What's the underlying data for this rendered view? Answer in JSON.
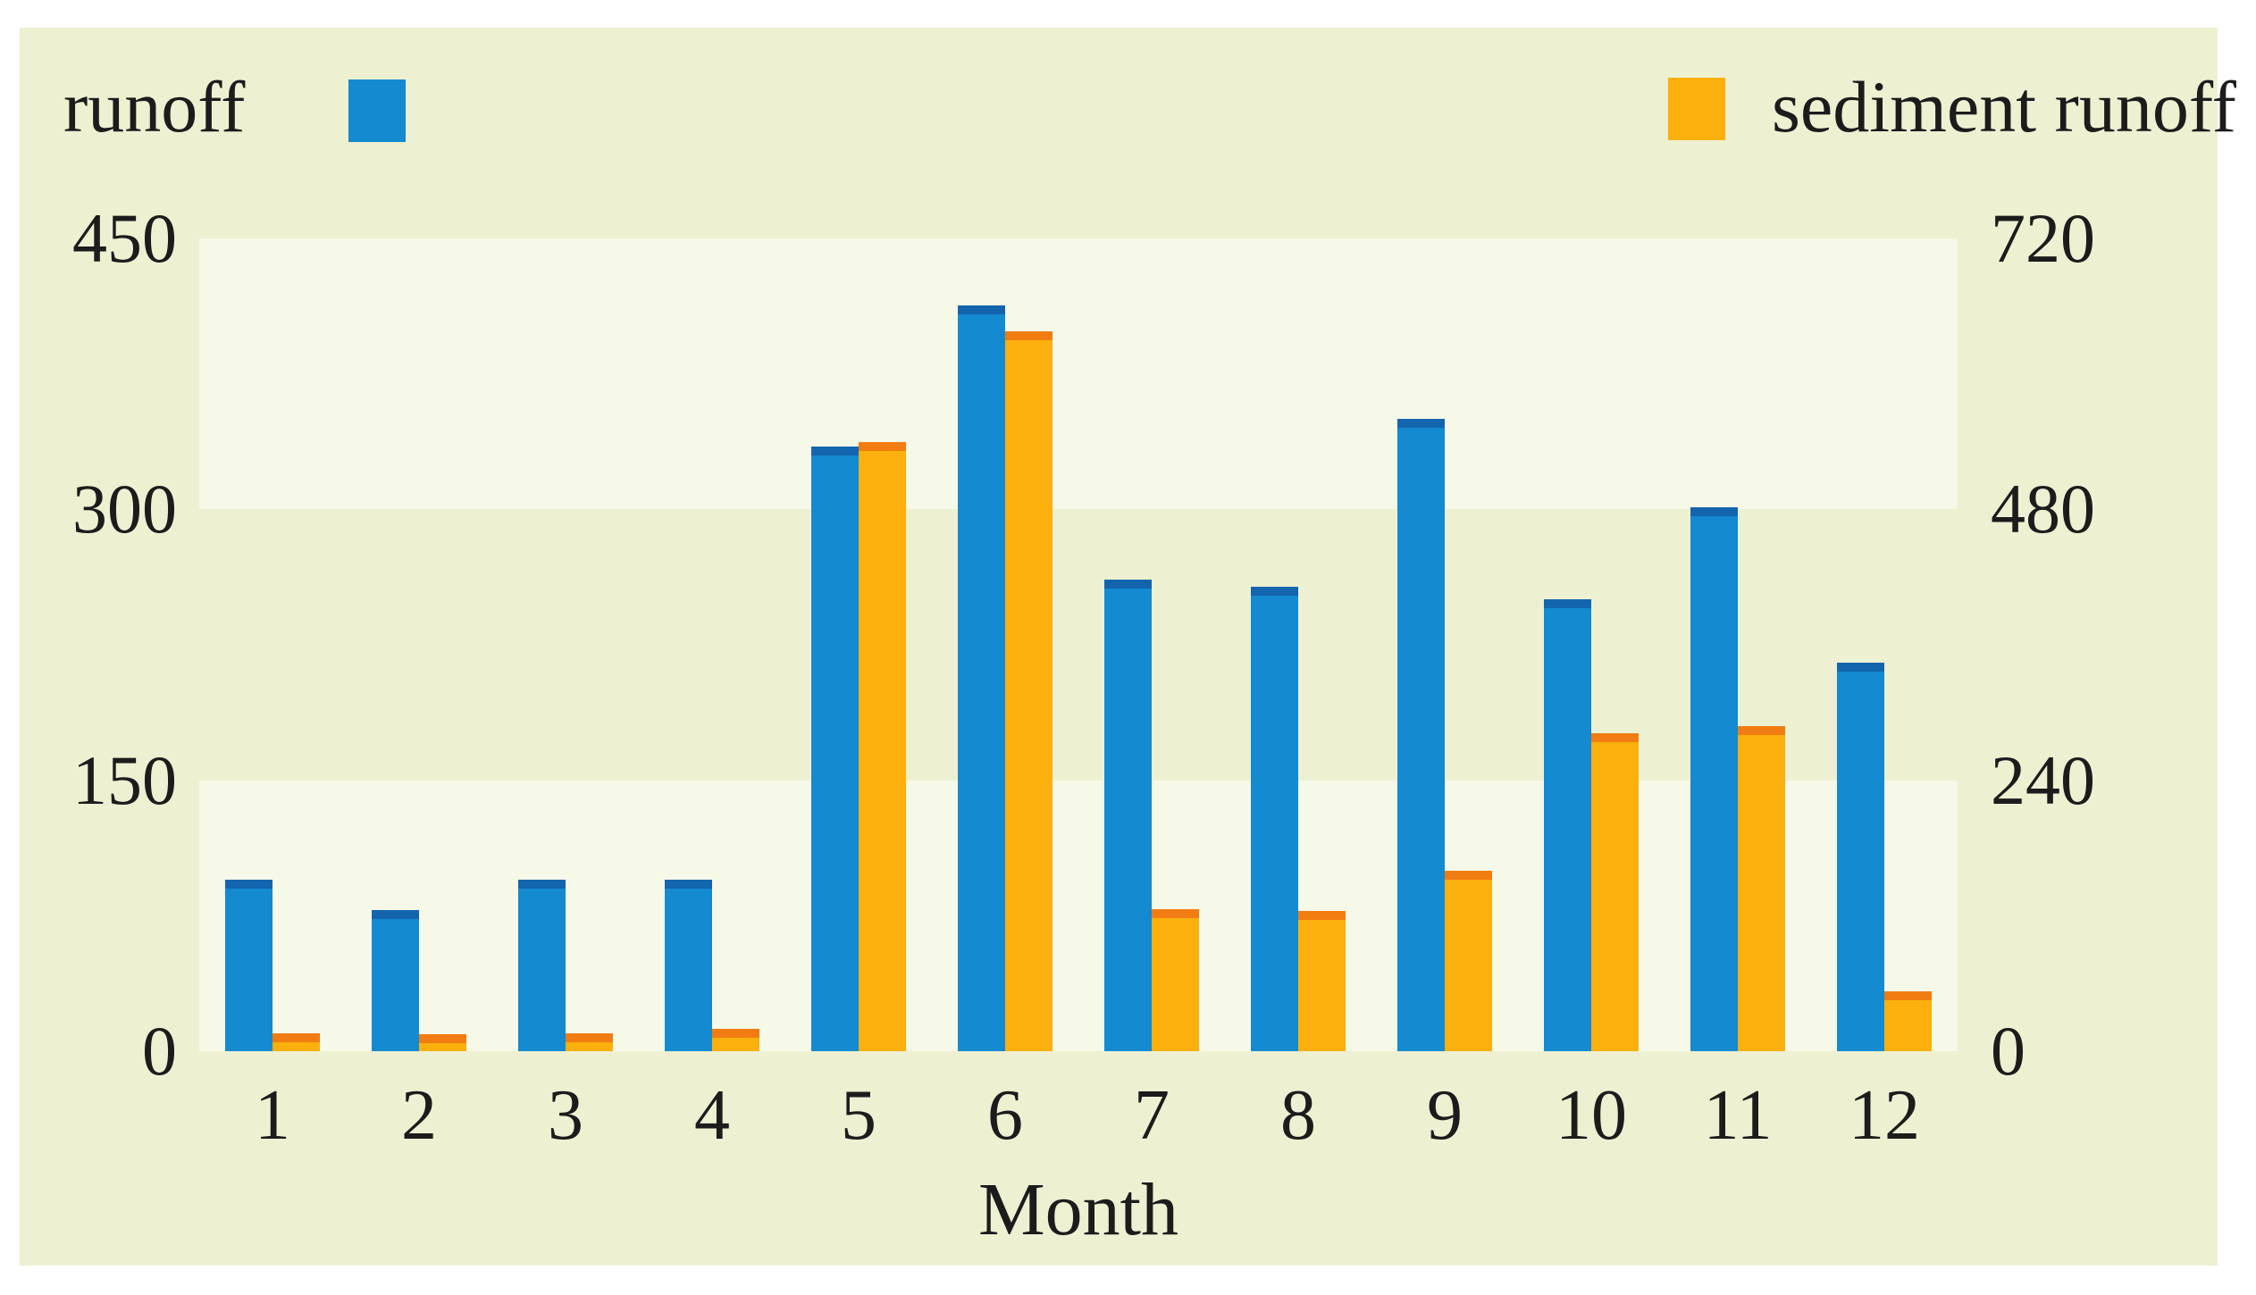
{
  "chart_data": {
    "type": "bar",
    "xlabel": "Month",
    "categories": [
      "1",
      "2",
      "3",
      "4",
      "5",
      "6",
      "7",
      "8",
      "9",
      "10",
      "11",
      "12"
    ],
    "series": [
      {
        "name": "runoff",
        "axis": "left",
        "values": [
          95,
          78,
          95,
          95,
          335,
          413,
          261,
          257,
          350,
          250,
          301,
          215
        ],
        "body_color": "#148ad0",
        "cap_color": "#1365ae"
      },
      {
        "name": "sediment runoff",
        "axis": "right",
        "values": [
          16,
          15,
          16,
          20,
          540,
          638,
          126,
          124,
          160,
          282,
          288,
          53
        ],
        "body_color": "#fbb00d",
        "cap_color": "#f17d12"
      }
    ],
    "left_axis": {
      "ticks": [
        "450",
        "300",
        "150",
        "0"
      ],
      "max": 450
    },
    "right_axis": {
      "ticks": [
        "720",
        "480",
        "240",
        "0"
      ],
      "max": 720
    },
    "legend": [
      {
        "label": "runoff"
      },
      {
        "label": "sediment runoff"
      }
    ],
    "legend_position": "top",
    "grid": "horizontal shaded bands between alternate gridlines",
    "colors": {
      "panel_background": "#eef0d2",
      "band_background": "#f6f8e8",
      "text": "#1c1c1c"
    }
  }
}
